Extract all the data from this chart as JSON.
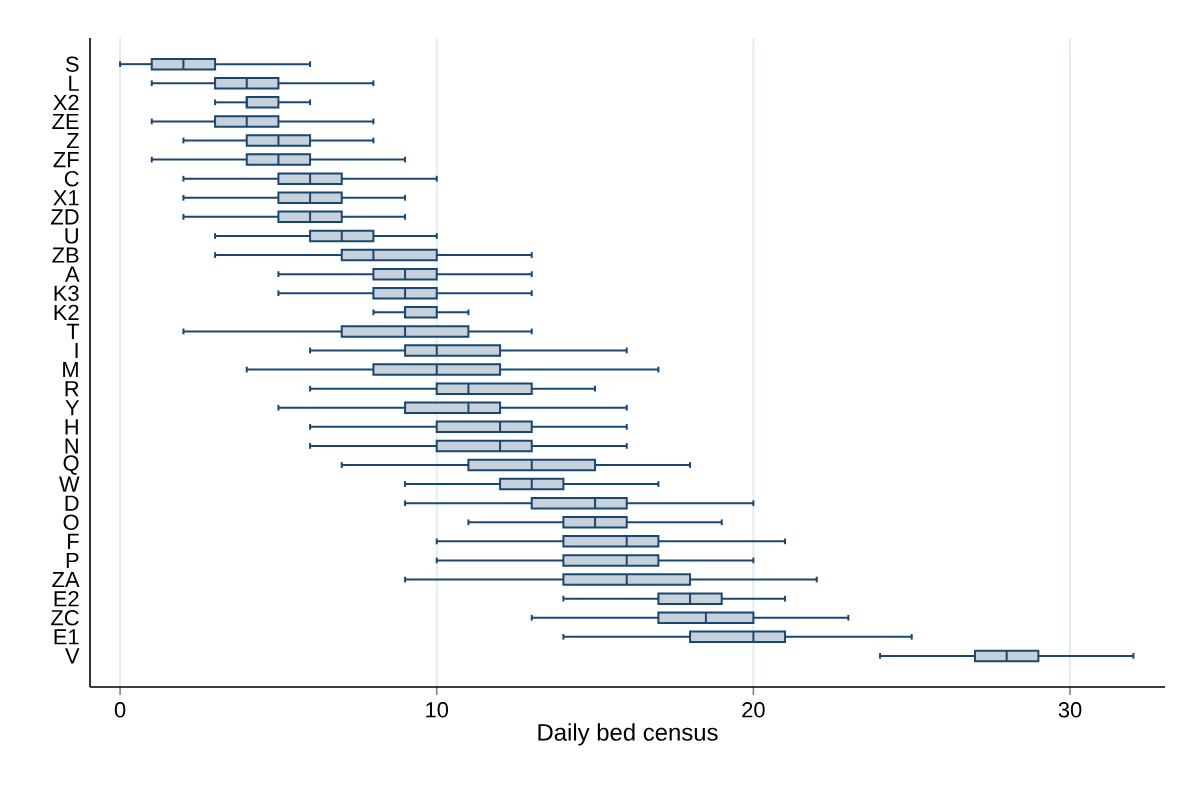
{
  "chart_data": {
    "type": "box",
    "orientation": "horizontal",
    "xlabel": "Daily bed census",
    "categories": [
      "S",
      "L",
      "X2",
      "ZE",
      "Z",
      "ZF",
      "C",
      "X1",
      "ZD",
      "U",
      "ZB",
      "A",
      "K3",
      "K2",
      "T",
      "I",
      "M",
      "R",
      "Y",
      "H",
      "N",
      "Q",
      "W",
      "D",
      "O",
      "F",
      "P",
      "ZA",
      "E2",
      "ZC",
      "E1",
      "V"
    ],
    "boxes": [
      {
        "low": 0,
        "q1": 1,
        "median": 2,
        "q3": 3,
        "high": 6
      },
      {
        "low": 1,
        "q1": 3,
        "median": 4,
        "q3": 5,
        "high": 8
      },
      {
        "low": 3,
        "q1": 4,
        "median": 4,
        "q3": 5,
        "high": 6
      },
      {
        "low": 1,
        "q1": 3,
        "median": 4,
        "q3": 5,
        "high": 8
      },
      {
        "low": 2,
        "q1": 4,
        "median": 5,
        "q3": 6,
        "high": 8
      },
      {
        "low": 1,
        "q1": 4,
        "median": 5,
        "q3": 6,
        "high": 9
      },
      {
        "low": 2,
        "q1": 5,
        "median": 6,
        "q3": 7,
        "high": 10
      },
      {
        "low": 2,
        "q1": 5,
        "median": 6,
        "q3": 7,
        "high": 9
      },
      {
        "low": 2,
        "q1": 5,
        "median": 6,
        "q3": 7,
        "high": 9
      },
      {
        "low": 3,
        "q1": 6,
        "median": 7,
        "q3": 8,
        "high": 10
      },
      {
        "low": 3,
        "q1": 7,
        "median": 8,
        "q3": 10,
        "high": 13
      },
      {
        "low": 5,
        "q1": 8,
        "median": 9,
        "q3": 10,
        "high": 13
      },
      {
        "low": 5,
        "q1": 8,
        "median": 9,
        "q3": 10,
        "high": 13
      },
      {
        "low": 8,
        "q1": 9,
        "median": 9,
        "q3": 10,
        "high": 11
      },
      {
        "low": 2,
        "q1": 7,
        "median": 9,
        "q3": 11,
        "high": 13
      },
      {
        "low": 6,
        "q1": 9,
        "median": 10,
        "q3": 12,
        "high": 16
      },
      {
        "low": 4,
        "q1": 8,
        "median": 10,
        "q3": 12,
        "high": 17
      },
      {
        "low": 6,
        "q1": 10,
        "median": 11,
        "q3": 13,
        "high": 15
      },
      {
        "low": 5,
        "q1": 9,
        "median": 11,
        "q3": 12,
        "high": 16
      },
      {
        "low": 6,
        "q1": 10,
        "median": 12,
        "q3": 13,
        "high": 16
      },
      {
        "low": 6,
        "q1": 10,
        "median": 12,
        "q3": 13,
        "high": 16
      },
      {
        "low": 7,
        "q1": 11,
        "median": 13,
        "q3": 15,
        "high": 18
      },
      {
        "low": 9,
        "q1": 12,
        "median": 13,
        "q3": 14,
        "high": 17
      },
      {
        "low": 9,
        "q1": 13,
        "median": 15,
        "q3": 16,
        "high": 20
      },
      {
        "low": 11,
        "q1": 14,
        "median": 15,
        "q3": 16,
        "high": 19
      },
      {
        "low": 10,
        "q1": 14,
        "median": 16,
        "q3": 17,
        "high": 21
      },
      {
        "low": 10,
        "q1": 14,
        "median": 16,
        "q3": 17,
        "high": 20
      },
      {
        "low": 9,
        "q1": 14,
        "median": 16,
        "q3": 18,
        "high": 22
      },
      {
        "low": 14,
        "q1": 17,
        "median": 18,
        "q3": 19,
        "high": 21
      },
      {
        "low": 13,
        "q1": 17,
        "median": 18.5,
        "q3": 20,
        "high": 23
      },
      {
        "low": 14,
        "q1": 18,
        "median": 20,
        "q3": 21,
        "high": 25
      },
      {
        "low": 24,
        "q1": 27,
        "median": 28,
        "q3": 29,
        "high": 32
      }
    ],
    "color": "#1a476f",
    "xlim": [
      -0.95,
      33
    ],
    "xticks": [
      0,
      10,
      20,
      30
    ],
    "grid": "x"
  }
}
